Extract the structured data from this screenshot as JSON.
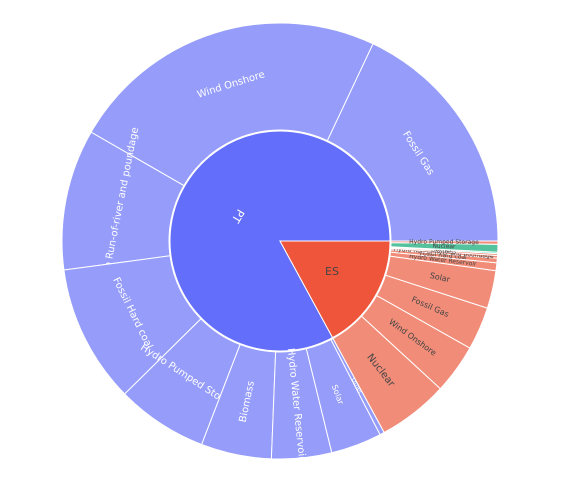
{
  "chart_data": {
    "type": "sunburst",
    "colors": {
      "PT": "#636efa",
      "PT_leaf": "#959cf9",
      "ES": "#ef553b",
      "ES_leaf": "#f08c78",
      "ES_nuclear": "#54c39d",
      "other": "#00cc96"
    },
    "center_labels": [
      "PT",
      "ES"
    ],
    "parents": [
      {
        "label": "PT",
        "children": [
          {
            "label": "Fossil Gas",
            "value": 18.6
          },
          {
            "label": "Wind Onshore",
            "value": 24.5
          },
          {
            "label": "Hydro Run-of-river and poundage",
            "value": 10.8
          },
          {
            "label": "Fossil Hard coal",
            "value": 10.6
          },
          {
            "label": "Hydro Pumped Storage",
            "value": 7.0
          },
          {
            "label": "Biomass",
            "value": 5.4
          },
          {
            "label": "Hydro Water Reservoir",
            "value": 4.6
          },
          {
            "label": "Solar",
            "value": 3.9
          },
          {
            "label": "Other",
            "value": 0.35
          }
        ]
      },
      {
        "label": "ES",
        "children": [
          {
            "label": "Nuclear",
            "value": 5.4
          },
          {
            "label": "Wind Onshore",
            "value": 3.8
          },
          {
            "label": "Fossil Gas",
            "value": 3.3
          },
          {
            "label": "Solar",
            "value": 2.9
          },
          {
            "label": "Hydro Water Reservoir",
            "value": 0.6
          },
          {
            "label": "Fossil Hard coal",
            "value": 0.35
          },
          {
            "label": "Hydro Run-of-river and poundage",
            "value": 0.2
          },
          {
            "label": "Biomass",
            "value": 0.15
          },
          {
            "label": "Other",
            "value": 0.1
          },
          {
            "label": "Nuclear",
            "value": 0.6
          },
          {
            "label": "Hydro Pumped Storage",
            "value": 0.25
          }
        ]
      }
    ],
    "visible_text": {
      "PT": "PT",
      "ES": "ES",
      "Fossil Gas": "Fossil Gas",
      "Wind Onshore": "Wind Onshore",
      "Hydro Run-of-river and poundage": "Hydro Run-of-river and poundage",
      "Fossil Hard coal": "Fossil Hard coal",
      "Hydro Pumped Storage": "Hydro Pumped Storage",
      "Biomass": "Biomass",
      "Hydro Water Reservoir": "Hydro Water Reservoir",
      "Solar": "Solar",
      "Other": "Other",
      "Nuclear": "Nuclear"
    }
  }
}
